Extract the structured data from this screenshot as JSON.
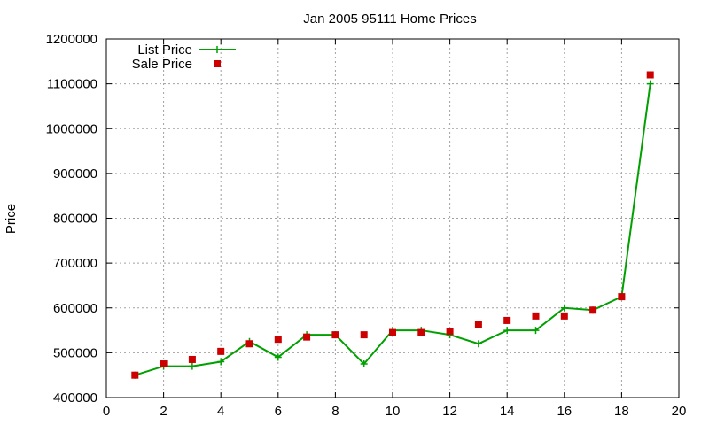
{
  "chart_data": {
    "type": "line",
    "title": "Jan 2005 95111 Home Prices",
    "xlabel": "",
    "ylabel": "Price",
    "xlim": [
      0,
      20
    ],
    "ylim": [
      400000,
      1200000
    ],
    "xticks": [
      0,
      2,
      4,
      6,
      8,
      10,
      12,
      14,
      16,
      18,
      20
    ],
    "yticks": [
      400000,
      500000,
      600000,
      700000,
      800000,
      900000,
      1000000,
      1100000,
      1200000
    ],
    "grid": true,
    "legend_position": "top-left",
    "series": [
      {
        "name": "List Price",
        "style": "line-points",
        "marker": "plus",
        "color": "#00a000",
        "x": [
          1,
          2,
          3,
          4,
          5,
          6,
          7,
          8,
          9,
          10,
          11,
          12,
          13,
          14,
          15,
          16,
          17,
          18,
          19
        ],
        "values": [
          450000,
          470000,
          470000,
          480000,
          525000,
          490000,
          540000,
          540000,
          475000,
          550000,
          550000,
          540000,
          520000,
          550000,
          550000,
          600000,
          595000,
          625000,
          1100000
        ]
      },
      {
        "name": "Sale Price",
        "style": "points",
        "marker": "square",
        "color": "#cc0000",
        "x": [
          1,
          2,
          3,
          4,
          5,
          6,
          7,
          8,
          9,
          10,
          11,
          12,
          13,
          14,
          15,
          16,
          17,
          18,
          19
        ],
        "values": [
          450000,
          475000,
          485000,
          503000,
          520000,
          530000,
          535000,
          540000,
          540000,
          545000,
          545000,
          548000,
          563000,
          572000,
          582000,
          582000,
          595000,
          625000,
          1120000
        ]
      }
    ]
  }
}
